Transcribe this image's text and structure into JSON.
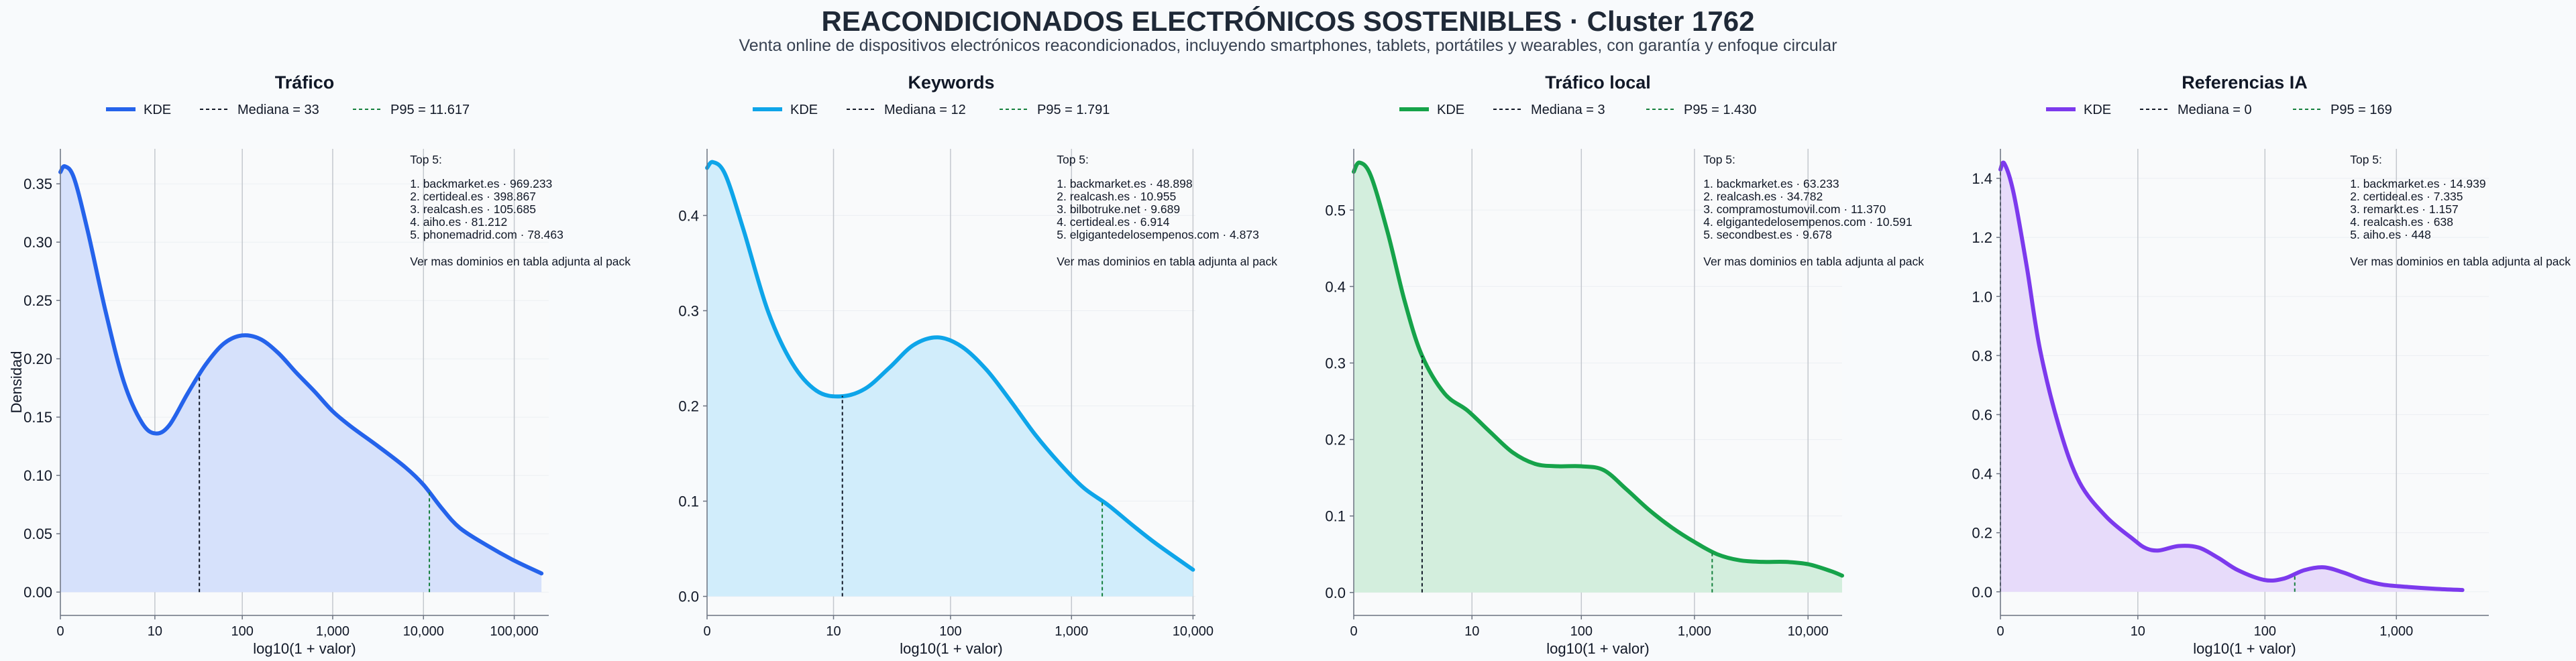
{
  "page": {
    "title": "REACONDICIONADOS ELECTRÓNICOS SOSTENIBLES · Cluster 1762",
    "subtitle": "Venta online de dispositivos electrónicos reacondicionados, incluyendo smartphones, tablets, portátiles y wearables, con garantía y enfoque circular"
  },
  "shared": {
    "ylabel": "Densidad",
    "xlabel": "log10(1 + valor)",
    "legend_kde": "KDE",
    "median_color": "#111827",
    "p95_color": "#15803d"
  },
  "chart_data": [
    {
      "type": "area",
      "title": "Tráfico",
      "color": "#2563eb",
      "fill": "#d6e1fb",
      "xlim": [
        0,
        5.38
      ],
      "ylim": [
        -0.02,
        0.38
      ],
      "x_ticks": [
        {
          "v": 0,
          "label": "0"
        },
        {
          "v": 1.041,
          "label": "10"
        },
        {
          "v": 2.004,
          "label": "100"
        },
        {
          "v": 3.0,
          "label": "1,000"
        },
        {
          "v": 4.0,
          "label": "10,000"
        },
        {
          "v": 5.0,
          "label": "100,000"
        }
      ],
      "y_ticks": [
        {
          "v": 0.0,
          "label": "0.00"
        },
        {
          "v": 0.05,
          "label": "0.05"
        },
        {
          "v": 0.1,
          "label": "0.10"
        },
        {
          "v": 0.15,
          "label": "0.15"
        },
        {
          "v": 0.2,
          "label": "0.20"
        },
        {
          "v": 0.25,
          "label": "0.25"
        },
        {
          "v": 0.3,
          "label": "0.30"
        },
        {
          "v": 0.35,
          "label": "0.35"
        }
      ],
      "kde": {
        "x": [
          0,
          0.05,
          0.15,
          0.3,
          0.5,
          0.7,
          0.9,
          1.05,
          1.2,
          1.4,
          1.6,
          1.8,
          2.0,
          2.2,
          2.4,
          2.6,
          2.8,
          3.0,
          3.2,
          3.5,
          3.8,
          4.0,
          4.2,
          4.4,
          4.7,
          5.0,
          5.3
        ],
        "y": [
          0.36,
          0.365,
          0.355,
          0.31,
          0.24,
          0.18,
          0.145,
          0.136,
          0.143,
          0.17,
          0.195,
          0.213,
          0.22,
          0.217,
          0.205,
          0.188,
          0.172,
          0.155,
          0.142,
          0.125,
          0.107,
          0.092,
          0.072,
          0.055,
          0.04,
          0.027,
          0.016
        ]
      },
      "median": {
        "value": 1.531,
        "label": "Mediana = 33"
      },
      "p95": {
        "value": 4.065,
        "label": "P95 = 11.617"
      },
      "top5_title": "Top 5:",
      "top5": [
        "1. backmarket.es · 969.233",
        "2. certideal.es · 398.867",
        "3. realcash.es · 105.685",
        "4. aiho.es · 81.212",
        "5. phonemadrid.com · 78.463"
      ],
      "top5_note": "Ver mas dominios en tabla adjunta al pack"
    },
    {
      "type": "area",
      "title": "Keywords",
      "color": "#0ea5e9",
      "fill": "#d1edfb",
      "xlim": [
        0,
        4.02
      ],
      "ylim": [
        -0.02,
        0.47
      ],
      "x_ticks": [
        {
          "v": 0,
          "label": "0"
        },
        {
          "v": 1.041,
          "label": "10"
        },
        {
          "v": 2.004,
          "label": "100"
        },
        {
          "v": 3.0,
          "label": "1,000"
        },
        {
          "v": 4.0,
          "label": "10,000"
        }
      ],
      "y_ticks": [
        {
          "v": 0.0,
          "label": "0.0"
        },
        {
          "v": 0.1,
          "label": "0.1"
        },
        {
          "v": 0.2,
          "label": "0.2"
        },
        {
          "v": 0.3,
          "label": "0.3"
        },
        {
          "v": 0.4,
          "label": "0.4"
        }
      ],
      "kde": {
        "x": [
          0,
          0.05,
          0.15,
          0.3,
          0.5,
          0.7,
          0.9,
          1.1,
          1.3,
          1.5,
          1.7,
          1.9,
          2.1,
          2.3,
          2.5,
          2.7,
          2.9,
          3.1,
          3.3,
          3.5,
          3.7,
          4.0
        ],
        "y": [
          0.45,
          0.456,
          0.443,
          0.385,
          0.3,
          0.245,
          0.216,
          0.21,
          0.218,
          0.24,
          0.264,
          0.272,
          0.262,
          0.238,
          0.205,
          0.17,
          0.14,
          0.114,
          0.096,
          0.075,
          0.055,
          0.028
        ]
      },
      "median": {
        "value": 1.114,
        "label": "Mediana = 12"
      },
      "p95": {
        "value": 3.253,
        "label": "P95 = 1.791"
      },
      "top5_title": "Top 5:",
      "top5": [
        "1. backmarket.es · 48.898",
        "2. realcash.es · 10.955",
        "3. bilbotruke.net · 9.689",
        "4. certideal.es · 6.914",
        "5. elgigantedelosempenos.com · 4.873"
      ],
      "top5_note": "Ver mas dominios en tabla adjunta al pack"
    },
    {
      "type": "area",
      "title": "Tráfico local",
      "color": "#16a34a",
      "fill": "#d3eedd",
      "xlim": [
        0,
        4.3
      ],
      "ylim": [
        -0.03,
        0.58
      ],
      "x_ticks": [
        {
          "v": 0,
          "label": "0"
        },
        {
          "v": 1.041,
          "label": "10"
        },
        {
          "v": 2.004,
          "label": "100"
        },
        {
          "v": 3.0,
          "label": "1,000"
        },
        {
          "v": 4.0,
          "label": "10,000"
        }
      ],
      "y_ticks": [
        {
          "v": 0.0,
          "label": "0.0"
        },
        {
          "v": 0.1,
          "label": "0.1"
        },
        {
          "v": 0.2,
          "label": "0.2"
        },
        {
          "v": 0.3,
          "label": "0.3"
        },
        {
          "v": 0.4,
          "label": "0.4"
        },
        {
          "v": 0.5,
          "label": "0.5"
        }
      ],
      "kde": {
        "x": [
          0,
          0.05,
          0.15,
          0.3,
          0.45,
          0.6,
          0.8,
          1.0,
          1.2,
          1.4,
          1.6,
          1.8,
          2.0,
          2.2,
          2.4,
          2.6,
          2.8,
          3.0,
          3.2,
          3.4,
          3.6,
          3.8,
          4.0,
          4.2,
          4.3
        ],
        "y": [
          0.55,
          0.562,
          0.545,
          0.47,
          0.38,
          0.31,
          0.26,
          0.238,
          0.21,
          0.183,
          0.168,
          0.165,
          0.165,
          0.16,
          0.135,
          0.108,
          0.085,
          0.066,
          0.05,
          0.042,
          0.04,
          0.04,
          0.037,
          0.028,
          0.022
        ]
      },
      "median": {
        "value": 0.602,
        "label": "Mediana = 3"
      },
      "p95": {
        "value": 3.156,
        "label": "P95 = 1.430"
      },
      "top5_title": "Top 5:",
      "top5": [
        "1. backmarket.es · 63.233",
        "2. realcash.es · 34.782",
        "3. compramostumovil.com · 11.370",
        "4. elgigantedelosempenos.com · 10.591",
        "5. secondbest.es · 9.678"
      ],
      "top5_note": "Ver mas dominios en tabla adjunta al pack"
    },
    {
      "type": "area",
      "title": "Referencias IA",
      "color": "#7c3aed",
      "fill": "#e7dbfa",
      "xlim": [
        0,
        3.7
      ],
      "ylim": [
        -0.08,
        1.5
      ],
      "x_ticks": [
        {
          "v": 0,
          "label": "0"
        },
        {
          "v": 1.041,
          "label": "10"
        },
        {
          "v": 2.004,
          "label": "100"
        },
        {
          "v": 3.0,
          "label": "1,000"
        }
      ],
      "y_ticks": [
        {
          "v": 0.0,
          "label": "0.0"
        },
        {
          "v": 0.2,
          "label": "0.2"
        },
        {
          "v": 0.4,
          "label": "0.4"
        },
        {
          "v": 0.6,
          "label": "0.6"
        },
        {
          "v": 0.8,
          "label": "0.8"
        },
        {
          "v": 1.0,
          "label": "1.0"
        },
        {
          "v": 1.2,
          "label": "1.2"
        },
        {
          "v": 1.4,
          "label": "1.4"
        }
      ],
      "kde": {
        "x": [
          0,
          0.03,
          0.1,
          0.2,
          0.3,
          0.45,
          0.6,
          0.8,
          1.0,
          1.1,
          1.2,
          1.35,
          1.5,
          1.65,
          1.8,
          2.0,
          2.15,
          2.3,
          2.45,
          2.6,
          2.75,
          2.9,
          3.1,
          3.3,
          3.5
        ],
        "y": [
          1.43,
          1.45,
          1.35,
          1.1,
          0.82,
          0.55,
          0.37,
          0.255,
          0.18,
          0.148,
          0.14,
          0.155,
          0.15,
          0.115,
          0.073,
          0.04,
          0.045,
          0.073,
          0.083,
          0.065,
          0.04,
          0.024,
          0.016,
          0.01,
          0.006
        ]
      },
      "median": {
        "value": 0,
        "label": "Mediana = 0"
      },
      "p95": {
        "value": 2.23,
        "label": "P95 = 169"
      },
      "top5_title": "Top 5:",
      "top5": [
        "1. backmarket.es · 14.939",
        "2. certideal.es · 7.335",
        "3. remarkt.es · 1.157",
        "4. realcash.es · 638",
        "5. aiho.es · 448"
      ],
      "top5_note": "Ver mas dominios en tabla adjunta al pack"
    }
  ]
}
